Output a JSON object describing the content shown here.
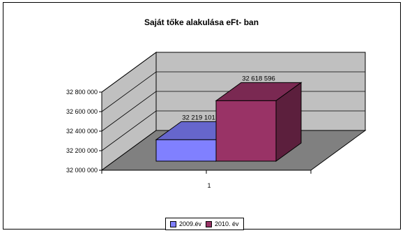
{
  "chart_data": {
    "type": "bar",
    "title": "Saját tőke alakulása eFt- ban",
    "categories": [
      "1"
    ],
    "series": [
      {
        "name": "2009.év",
        "values": [
          32219101
        ],
        "label": "32 219 101",
        "color": "#8080ff"
      },
      {
        "name": "2010. év",
        "values": [
          32618596
        ],
        "label": "32 618 596",
        "color": "#993366"
      }
    ],
    "ylim": [
      32000000,
      32800000
    ],
    "yticks": [
      {
        "value": 32000000,
        "label": "32 000 000"
      },
      {
        "value": 32200000,
        "label": "32 200 000"
      },
      {
        "value": 32400000,
        "label": "32 400 000"
      },
      {
        "value": 32600000,
        "label": "32 600 000"
      },
      {
        "value": 32800000,
        "label": "32 800 000"
      }
    ],
    "grid": true,
    "three_d": true,
    "legend_position": "bottom",
    "colors": {
      "wall": "#c0c0c0",
      "floor": "#808080",
      "frame": "#000000"
    }
  }
}
